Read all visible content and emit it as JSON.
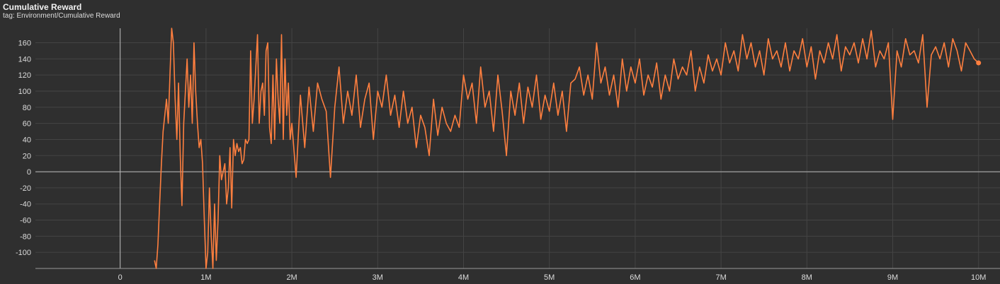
{
  "card": {
    "title": "Cumulative Reward",
    "tag": "tag: Environment/Cumulative Reward"
  },
  "colors": {
    "background": "#2f2f2f",
    "grid": "#444444",
    "zero_axis": "#bdbdbd",
    "series": "#ff7f3f"
  },
  "chart_data": {
    "type": "line",
    "title": "Cumulative Reward",
    "xlabel": "",
    "ylabel": "",
    "xlim": [
      -1400000,
      10250000
    ],
    "ylim": [
      -120,
      178
    ],
    "grid": true,
    "x_ticks": [
      {
        "value": 0,
        "label": "0"
      },
      {
        "value": 1000000,
        "label": "1M"
      },
      {
        "value": 2000000,
        "label": "2M"
      },
      {
        "value": 3000000,
        "label": "3M"
      },
      {
        "value": 4000000,
        "label": "4M"
      },
      {
        "value": 5000000,
        "label": "5M"
      },
      {
        "value": 6000000,
        "label": "6M"
      },
      {
        "value": 7000000,
        "label": "7M"
      },
      {
        "value": 8000000,
        "label": "8M"
      },
      {
        "value": 9000000,
        "label": "9M"
      },
      {
        "value": 10000000,
        "label": "10M"
      }
    ],
    "y_ticks": [
      {
        "value": 160,
        "label": "160"
      },
      {
        "value": 140,
        "label": "140"
      },
      {
        "value": 120,
        "label": "120"
      },
      {
        "value": 100,
        "label": "100"
      },
      {
        "value": 80,
        "label": "80"
      },
      {
        "value": 60,
        "label": "60"
      },
      {
        "value": 40,
        "label": "40"
      },
      {
        "value": 20,
        "label": "20"
      },
      {
        "value": 0,
        "label": "0"
      },
      {
        "value": -20,
        "label": "-20"
      },
      {
        "value": -40,
        "label": "-40"
      },
      {
        "value": -60,
        "label": "-60"
      },
      {
        "value": -80,
        "label": "-80"
      },
      {
        "value": -100,
        "label": "-100"
      }
    ],
    "series": [
      {
        "x": [
          400000,
          420000,
          440000,
          460000,
          480000,
          500000,
          520000,
          540000,
          560000,
          580000,
          600000,
          620000,
          640000,
          660000,
          680000,
          700000,
          720000,
          740000,
          760000,
          780000,
          800000,
          820000,
          840000,
          860000,
          880000,
          900000,
          920000,
          940000,
          960000,
          980000,
          1000000,
          1020000,
          1040000,
          1060000,
          1080000,
          1100000,
          1120000,
          1140000,
          1160000,
          1180000,
          1200000,
          1220000,
          1240000,
          1260000,
          1280000,
          1300000,
          1320000,
          1340000,
          1360000,
          1380000,
          1400000,
          1420000,
          1440000,
          1460000,
          1480000,
          1500000,
          1520000,
          1540000,
          1560000,
          1580000,
          1600000,
          1620000,
          1640000,
          1660000,
          1680000,
          1700000,
          1720000,
          1740000,
          1760000,
          1780000,
          1800000,
          1820000,
          1840000,
          1860000,
          1880000,
          1900000,
          1920000,
          1940000,
          1960000,
          1980000,
          2000000,
          2050000,
          2100000,
          2150000,
          2200000,
          2250000,
          2300000,
          2350000,
          2400000,
          2450000,
          2500000,
          2550000,
          2600000,
          2650000,
          2700000,
          2750000,
          2800000,
          2850000,
          2900000,
          2950000,
          3000000,
          3050000,
          3100000,
          3150000,
          3200000,
          3250000,
          3300000,
          3350000,
          3400000,
          3450000,
          3500000,
          3550000,
          3600000,
          3650000,
          3700000,
          3750000,
          3800000,
          3850000,
          3900000,
          3950000,
          4000000,
          4050000,
          4100000,
          4150000,
          4200000,
          4250000,
          4300000,
          4350000,
          4400000,
          4450000,
          4500000,
          4550000,
          4600000,
          4650000,
          4700000,
          4750000,
          4800000,
          4850000,
          4900000,
          4950000,
          5000000,
          5050000,
          5100000,
          5150000,
          5200000,
          5250000,
          5300000,
          5350000,
          5400000,
          5450000,
          5500000,
          5550000,
          5600000,
          5650000,
          5700000,
          5750000,
          5800000,
          5850000,
          5900000,
          5950000,
          6000000,
          6050000,
          6100000,
          6150000,
          6200000,
          6250000,
          6300000,
          6350000,
          6400000,
          6450000,
          6500000,
          6550000,
          6600000,
          6650000,
          6700000,
          6750000,
          6800000,
          6850000,
          6900000,
          6950000,
          7000000,
          7050000,
          7100000,
          7150000,
          7200000,
          7250000,
          7300000,
          7350000,
          7400000,
          7450000,
          7500000,
          7550000,
          7600000,
          7650000,
          7700000,
          7750000,
          7800000,
          7850000,
          7900000,
          7950000,
          8000000,
          8050000,
          8100000,
          8150000,
          8200000,
          8250000,
          8300000,
          8350000,
          8400000,
          8450000,
          8500000,
          8550000,
          8600000,
          8650000,
          8700000,
          8750000,
          8800000,
          8850000,
          8900000,
          8950000,
          9000000,
          9050000,
          9100000,
          9150000,
          9200000,
          9250000,
          9300000,
          9350000,
          9400000,
          9450000,
          9500000,
          9550000,
          9600000,
          9650000,
          9700000,
          9750000,
          9800000,
          9850000,
          9900000,
          9950000,
          10000000
        ],
        "y": [
          -110,
          -125,
          -90,
          -40,
          10,
          50,
          70,
          90,
          60,
          120,
          180,
          160,
          90,
          40,
          110,
          20,
          -42,
          60,
          100,
          140,
          80,
          120,
          60,
          160,
          100,
          60,
          30,
          40,
          10,
          -60,
          -130,
          -100,
          -20,
          -80,
          -120,
          -40,
          -110,
          -60,
          20,
          -10,
          0,
          10,
          -40,
          -20,
          30,
          -45,
          40,
          20,
          35,
          25,
          30,
          10,
          15,
          40,
          35,
          40,
          150,
          60,
          90,
          130,
          170,
          60,
          100,
          110,
          70,
          150,
          160,
          55,
          35,
          120,
          40,
          140,
          90,
          60,
          170,
          40,
          140,
          70,
          110,
          40,
          60,
          -7,
          95,
          30,
          105,
          50,
          110,
          90,
          75,
          -7,
          80,
          130,
          60,
          100,
          70,
          120,
          55,
          90,
          110,
          40,
          100,
          80,
          120,
          70,
          95,
          55,
          100,
          60,
          80,
          30,
          70,
          55,
          20,
          90,
          45,
          80,
          60,
          50,
          70,
          55,
          120,
          90,
          110,
          60,
          130,
          80,
          100,
          50,
          120,
          75,
          20,
          100,
          70,
          110,
          60,
          105,
          80,
          120,
          65,
          95,
          75,
          110,
          70,
          100,
          50,
          110,
          115,
          130,
          95,
          120,
          90,
          160,
          110,
          130,
          95,
          120,
          80,
          140,
          100,
          130,
          110,
          140,
          95,
          120,
          105,
          135,
          90,
          120,
          100,
          140,
          115,
          130,
          120,
          150,
          100,
          130,
          110,
          145,
          125,
          140,
          120,
          160,
          135,
          150,
          125,
          170,
          140,
          160,
          130,
          150,
          120,
          165,
          140,
          150,
          130,
          160,
          125,
          150,
          140,
          165,
          130,
          155,
          115,
          150,
          135,
          160,
          140,
          170,
          125,
          155,
          145,
          160,
          135,
          165,
          140,
          175,
          130,
          150,
          140,
          160,
          65,
          150,
          130,
          165,
          145,
          150,
          135,
          170,
          80,
          145,
          155,
          140,
          160,
          130,
          165,
          150,
          125,
          160,
          150,
          140,
          135
        ]
      }
    ]
  }
}
